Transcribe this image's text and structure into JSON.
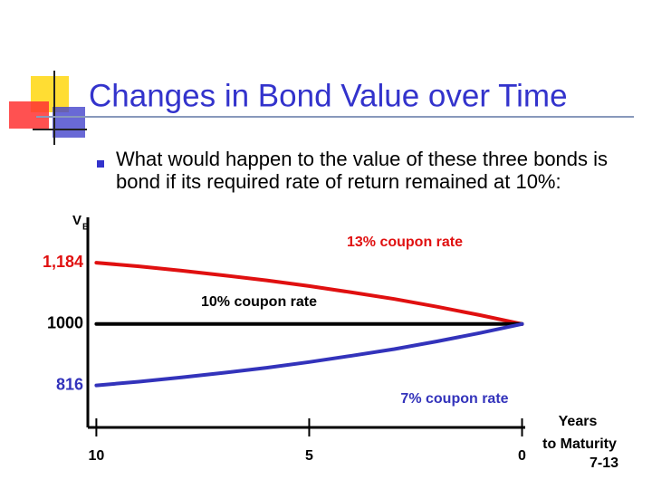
{
  "chart_data": {
    "type": "line",
    "title": "Changes in Bond Value over Time",
    "subtitle": "What would happen to the value of these three bonds is bond if its required rate of return remained at 10%:",
    "page_number": "7-13",
    "ylabel": "V",
    "ylabel_subscript": "B",
    "xlabel": [
      "Years",
      "to Maturity"
    ],
    "x": [
      10,
      9,
      8,
      7,
      6,
      5,
      4,
      3,
      2,
      1,
      0
    ],
    "series": [
      {
        "name": "13% coupon rate",
        "color": "#e01010",
        "values": [
          1184,
          1173,
          1160,
          1146,
          1131,
          1114,
          1095,
          1075,
          1052,
          1027,
          1000
        ]
      },
      {
        "name": "10% coupon rate",
        "color": "#000000",
        "values": [
          1000,
          1000,
          1000,
          1000,
          1000,
          1000,
          1000,
          1000,
          1000,
          1000,
          1000
        ]
      },
      {
        "name": "7% coupon rate",
        "color": "#3333bb",
        "values": [
          816,
          827,
          840,
          854,
          869,
          886,
          905,
          925,
          948,
          973,
          1000
        ]
      }
    ],
    "xlim": [
      10.2,
      -0.5
    ],
    "xticks": [
      10,
      5,
      0
    ],
    "ylim": [
      690,
      1320
    ],
    "yticks": [
      816,
      1000,
      {
        "value": 1184,
        "label": "1,184"
      }
    ],
    "ytick_colors": [
      "#3333bb",
      "#000000",
      "#e01010"
    ]
  }
}
